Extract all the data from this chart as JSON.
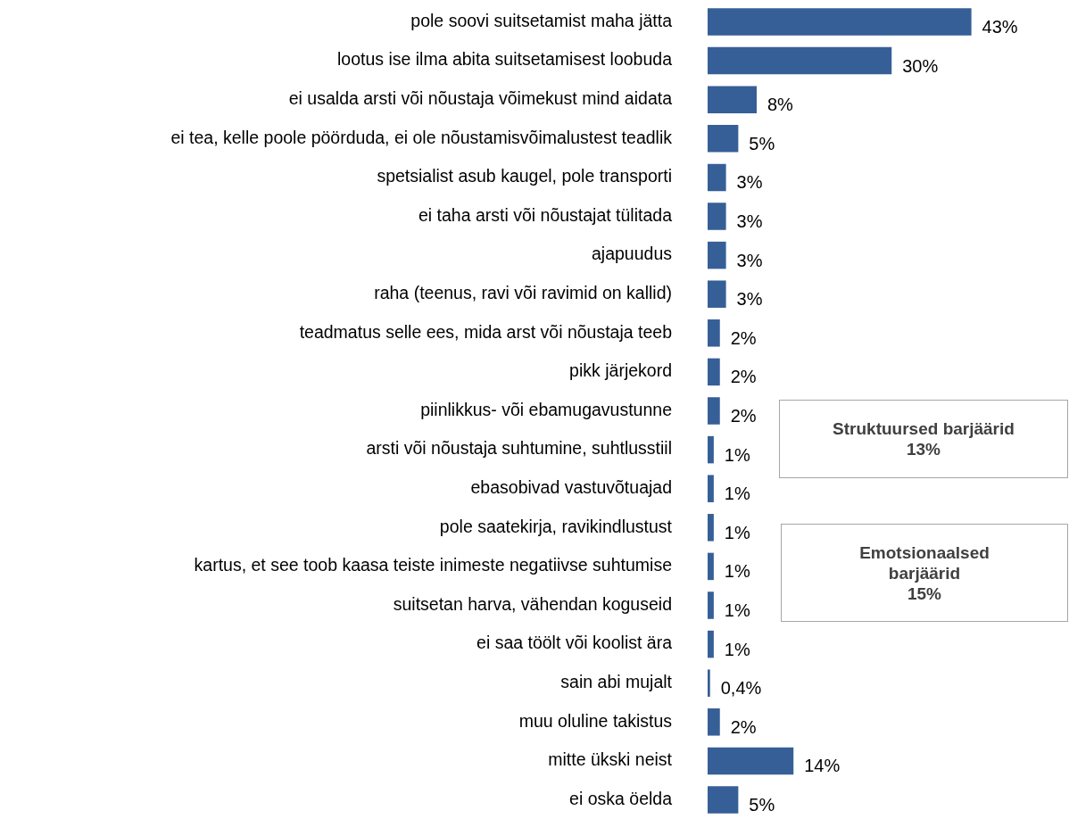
{
  "chart_data": {
    "type": "bar",
    "orientation": "horizontal",
    "color": "#365f97",
    "categories": [
      "pole soovi suitsetamist maha jätta",
      "lootus ise ilma abita suitsetamisest loobuda",
      "ei usalda arsti või nõustaja võimekust mind aidata",
      "ei tea, kelle poole pöörduda, ei ole nõustamisvõimalustest teadlik",
      "spetsialist asub kaugel, pole transporti",
      "ei taha arsti või nõustajat tülitada",
      "ajapuudus",
      "raha (teenus, ravi või ravimid on kallid)",
      "teadmatus selle ees, mida arst või nõustaja teeb",
      "pikk järjekord",
      "piinlikkus- või ebamugavustunne",
      "arsti või nõustaja suhtumine, suhtlusstiil",
      "ebasobivad vastuvõtuajad",
      "pole saatekirja, ravikindlustust",
      "kartus, et see toob kaasa teiste inimeste negatiivse suhtumise",
      "suitsetan harva, vähendan koguseid",
      "ei saa töölt või koolist ära",
      "sain abi mujalt",
      "muu oluline takistus",
      "mitte ükski neist",
      "ei oska öelda"
    ],
    "values": [
      43,
      30,
      8,
      5,
      3,
      3,
      3,
      3,
      2,
      2,
      2,
      1,
      1,
      1,
      1,
      1,
      1,
      0.4,
      2,
      14,
      5
    ],
    "value_labels": [
      "43%",
      "30%",
      "8%",
      "5%",
      "3%",
      "3%",
      "3%",
      "3%",
      "2%",
      "2%",
      "2%",
      "1%",
      "1%",
      "1%",
      "1%",
      "1%",
      "1%",
      "0,4%",
      "2%",
      "14%",
      "5%"
    ],
    "annotations": [
      "Struktuursed  barjäärid\n13%",
      "Emotsionaalsed\nbarjäärid\n15%"
    ]
  }
}
